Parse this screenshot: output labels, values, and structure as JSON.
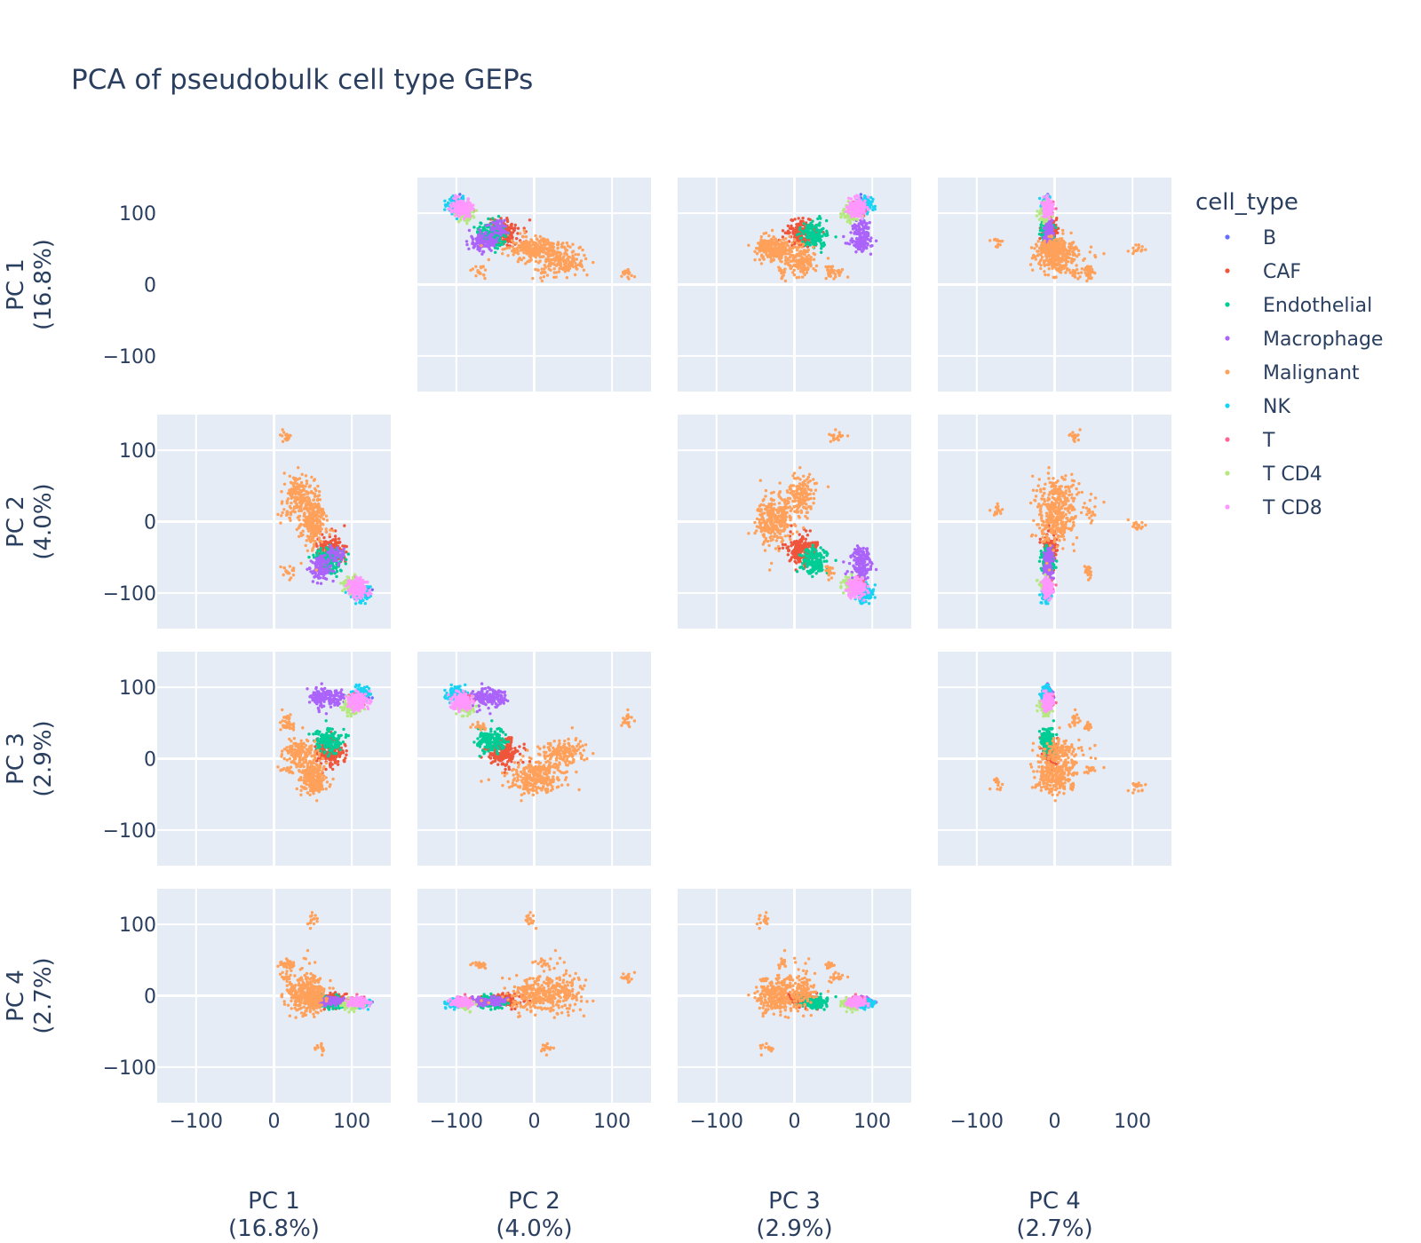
{
  "chart_data": {
    "type": "scatter",
    "title": "PCA of pseudobulk cell type GEPs",
    "dimensions": [
      {
        "name": "PC 1",
        "variance": "(16.8%)"
      },
      {
        "name": "PC 2",
        "variance": "(4.0%)"
      },
      {
        "name": "PC 3",
        "variance": "(2.9%)"
      },
      {
        "name": "PC 4",
        "variance": "(2.7%)"
      }
    ],
    "axis_range": [
      -150,
      150
    ],
    "ticks": [
      -100,
      0,
      100
    ],
    "tick_labels": [
      "−100",
      "0",
      "100"
    ],
    "grid": true,
    "diagonal_visible": false,
    "legend": {
      "title": "cell_type",
      "placement": "right"
    },
    "series": [
      {
        "name": "B",
        "color": "#636efa",
        "clusters": [
          {
            "c": [
              115,
              -95,
              88,
              -8
            ],
            "s": [
              6,
              6,
              4,
              3
            ],
            "n": 10
          }
        ]
      },
      {
        "name": "CAF",
        "color": "#ef553b",
        "clusters": [
          {
            "c": [
              72,
              -40,
              10,
              -5
            ],
            "s": [
              8,
              10,
              10,
              4
            ],
            "n": 170
          }
        ]
      },
      {
        "name": "Endothelial",
        "color": "#00cc96",
        "clusters": [
          {
            "c": [
              70,
              -55,
              25,
              -9
            ],
            "s": [
              9,
              10,
              9,
              4
            ],
            "n": 150
          }
        ]
      },
      {
        "name": "Macrophage",
        "color": "#ab63fa",
        "clusters": [
          {
            "c": [
              60,
              -65,
              85,
              -8
            ],
            "s": [
              6,
              8,
              7,
              3
            ],
            "n": 120
          },
          {
            "c": [
              80,
              -45,
              85,
              -6
            ],
            "s": [
              5,
              6,
              6,
              3
            ],
            "n": 50
          }
        ]
      },
      {
        "name": "Malignant",
        "color": "#ffa15a",
        "clusters": [
          {
            "c": [
              50,
              0,
              -25,
              0
            ],
            "s": [
              8,
              18,
              12,
              12
            ],
            "n": 230
          },
          {
            "c": [
              30,
              40,
              10,
              5
            ],
            "s": [
              8,
              12,
              8,
              10
            ],
            "n": 90
          },
          {
            "c": [
              40,
              30,
              0,
              15
            ],
            "s": [
              10,
              15,
              15,
              20
            ],
            "n": 70
          },
          {
            "c": [
              15,
              120,
              55,
              25
            ],
            "s": [
              4,
              3,
              5,
              3
            ],
            "n": 18
          },
          {
            "c": [
              48,
              -5,
              -40,
              105
            ],
            "s": [
              3,
              3,
              4,
              6
            ],
            "n": 16
          },
          {
            "c": [
              60,
              15,
              -35,
              -75
            ],
            "s": [
              3,
              4,
              4,
              4
            ],
            "n": 14
          },
          {
            "c": [
              20,
              -70,
              45,
              45
            ],
            "s": [
              4,
              5,
              4,
              3
            ],
            "n": 18
          },
          {
            "c": [
              15,
              10,
              -15,
              45
            ],
            "s": [
              4,
              6,
              3,
              3
            ],
            "n": 14
          }
        ]
      },
      {
        "name": "NK",
        "color": "#19d3f3",
        "clusters": [
          {
            "c": [
              112,
              -98,
              90,
              -10
            ],
            "s": [
              6,
              6,
              5,
              3
            ],
            "n": 110
          }
        ]
      },
      {
        "name": "T",
        "color": "#ff6692",
        "clusters": [
          {
            "c": [
              105,
              -88,
              82,
              -7
            ],
            "s": [
              5,
              6,
              5,
              3
            ],
            "n": 30
          }
        ]
      },
      {
        "name": "T CD4",
        "color": "#b6e880",
        "clusters": [
          {
            "c": [
              100,
              -88,
              72,
              -12
            ],
            "s": [
              6,
              6,
              5,
              4
            ],
            "n": 60
          }
        ]
      },
      {
        "name": "T CD8",
        "color": "#ff97ff",
        "clusters": [
          {
            "c": [
              108,
              -92,
              80,
              -9
            ],
            "s": [
              6,
              6,
              6,
              3
            ],
            "n": 170
          }
        ]
      }
    ]
  }
}
